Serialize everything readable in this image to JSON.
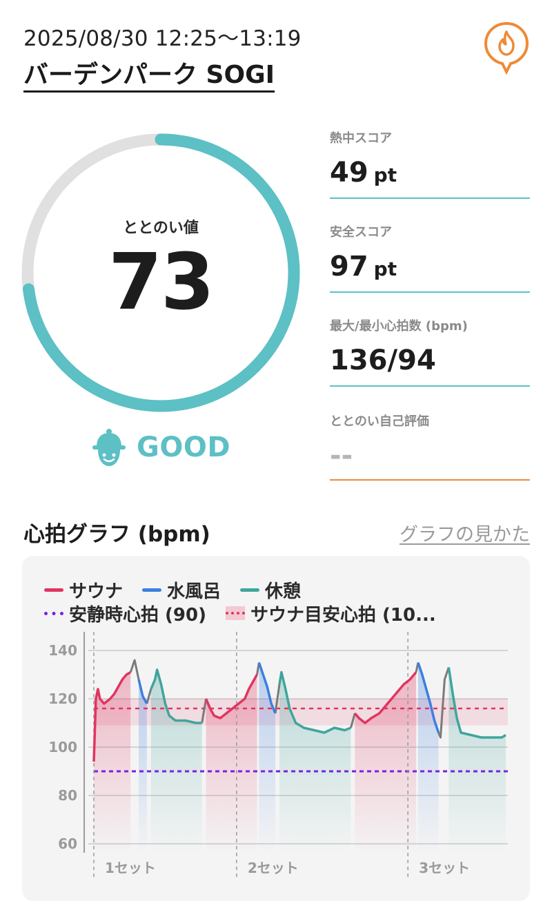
{
  "header": {
    "datetime": "2025/08/30 12:25〜13:19",
    "facility": "バーデンパーク SOGI",
    "pin_icon": "flame-pin-icon"
  },
  "gauge": {
    "label": "ととのい値",
    "value": "73",
    "max": 100,
    "fill_color": "#5cc0c5",
    "track_color": "#e0e0e0"
  },
  "rating": {
    "icon": "sauna-hat-face-icon",
    "text": "GOOD",
    "color": "#5cc0c5"
  },
  "stats": [
    {
      "label": "熱中スコア",
      "value": "49",
      "unit": "pt"
    },
    {
      "label": "安全スコア",
      "value": "97",
      "unit": "pt"
    },
    {
      "label": "最大/最小心拍数 (bpm)",
      "value": "136/94",
      "unit": ""
    },
    {
      "label": "ととのい自己評価",
      "value": "--",
      "unit": ""
    }
  ],
  "heart_graph": {
    "title": "心拍グラフ (bpm)",
    "guide_link": "グラフの見かた",
    "legend": {
      "sauna": "サウナ",
      "cold_bath": "水風呂",
      "rest": "休憩",
      "resting_hr": "安静時心拍 (90)",
      "sauna_target": "サウナ目安心拍 (10..."
    },
    "set_labels": [
      "1セット",
      "2セット",
      "3セット"
    ]
  },
  "chart_data": {
    "type": "line",
    "y_ticks": [
      140,
      120,
      100,
      80,
      60
    ],
    "ylim": [
      58,
      142
    ],
    "colors": {
      "sauna": "#e03560",
      "cold_bath": "#3b7fe0",
      "rest": "#3fa59c",
      "transition": "#7a7a7a",
      "resting": "#7b1fe0"
    },
    "resting_hr": 90,
    "sauna_target_line": 116,
    "sauna_target_band": [
      109,
      120
    ],
    "series": [
      {
        "name": "サウナ",
        "segments": [
          [
            [
              0,
              94
            ],
            [
              1,
              120
            ],
            [
              2,
              124
            ],
            [
              3,
              120
            ],
            [
              5,
              118
            ],
            [
              8,
              120
            ],
            [
              10,
              122
            ],
            [
              12,
              125
            ],
            [
              14,
              128
            ],
            [
              16,
              130
            ],
            [
              18,
              131
            ]
          ],
          [
            [
              55,
              120
            ],
            [
              57,
              116
            ],
            [
              59,
              113
            ],
            [
              62,
              112
            ],
            [
              65,
              114
            ],
            [
              68,
              116
            ],
            [
              71,
              118
            ],
            [
              74,
              120
            ],
            [
              76,
              124
            ],
            [
              78,
              127
            ],
            [
              80,
              130
            ]
          ],
          [
            [
              128,
              114
            ],
            [
              130,
              112
            ],
            [
              133,
              110
            ],
            [
              136,
              112
            ],
            [
              140,
              114
            ],
            [
              144,
              118
            ],
            [
              148,
              122
            ],
            [
              152,
              126
            ],
            [
              155,
              128
            ],
            [
              158,
              131
            ]
          ]
        ]
      },
      {
        "name": "水風呂",
        "segments": [
          [
            [
              22,
              128
            ],
            [
              24,
              121
            ],
            [
              26,
              118
            ]
          ],
          [
            [
              81,
              135
            ],
            [
              83,
              130
            ],
            [
              85,
              125
            ],
            [
              87,
              118
            ],
            [
              89,
              114
            ]
          ],
          [
            [
              159,
              135
            ],
            [
              161,
              130
            ],
            [
              163,
              124
            ],
            [
              165,
              118
            ],
            [
              167,
              111
            ],
            [
              169,
              106
            ]
          ]
        ]
      },
      {
        "name": "休憩",
        "segments": [
          [
            [
              28,
              124
            ],
            [
              30,
              128
            ],
            [
              31,
              132
            ],
            [
              33,
              126
            ],
            [
              35,
              118
            ],
            [
              37,
              113
            ],
            [
              40,
              111
            ],
            [
              45,
              111
            ],
            [
              50,
              110
            ],
            [
              53,
              110
            ]
          ],
          [
            [
              91,
              126
            ],
            [
              92,
              131
            ],
            [
              94,
              124
            ],
            [
              96,
              116
            ],
            [
              99,
              110
            ],
            [
              103,
              108
            ],
            [
              108,
              107
            ],
            [
              113,
              106
            ],
            [
              118,
              108
            ],
            [
              123,
              107
            ],
            [
              126,
              108
            ]
          ],
          [
            [
              174,
              133
            ],
            [
              176,
              122
            ],
            [
              178,
              112
            ],
            [
              180,
              106
            ],
            [
              185,
              105
            ],
            [
              190,
              104
            ],
            [
              195,
              104
            ],
            [
              200,
              104
            ],
            [
              202,
              105
            ]
          ]
        ]
      }
    ],
    "transitions": [
      [
        [
          18,
          131
        ],
        [
          20,
          136
        ],
        [
          22,
          128
        ]
      ],
      [
        [
          26,
          118
        ],
        [
          28,
          124
        ]
      ],
      [
        [
          53,
          110
        ],
        [
          55,
          120
        ]
      ],
      [
        [
          80,
          130
        ],
        [
          81,
          135
        ]
      ],
      [
        [
          89,
          114
        ],
        [
          91,
          126
        ]
      ],
      [
        [
          126,
          108
        ],
        [
          128,
          114
        ]
      ],
      [
        [
          158,
          131
        ],
        [
          159,
          135
        ]
      ],
      [
        [
          169,
          106
        ],
        [
          170,
          104
        ],
        [
          172,
          128
        ],
        [
          174,
          133
        ]
      ]
    ],
    "x_range": [
      0,
      203
    ]
  }
}
